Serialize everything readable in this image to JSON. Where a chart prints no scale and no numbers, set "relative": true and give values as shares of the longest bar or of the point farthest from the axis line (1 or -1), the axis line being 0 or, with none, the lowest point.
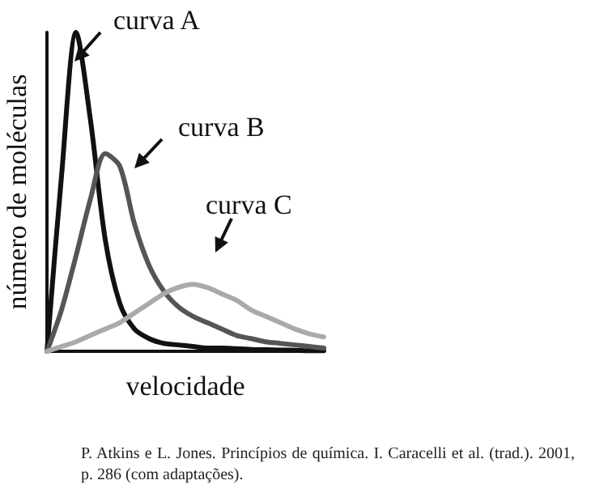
{
  "chart_data": {
    "type": "line",
    "relative": true,
    "xlabel": "velocidade",
    "ylabel": "número de moléculas",
    "categories": [
      null,
      null,
      null,
      null,
      null,
      null,
      null,
      null,
      null,
      null,
      null,
      null,
      null,
      null,
      null,
      null,
      null,
      null,
      null,
      null
    ],
    "series": [
      {
        "name": "curva A",
        "color": "#111111",
        "values": [
          0,
          0.55,
          1,
          0.72,
          0.35,
          0.15,
          0.07,
          0.04,
          0.025,
          0.02,
          0.015,
          0.01,
          0.01,
          0.008,
          0.006,
          0.005,
          0.004,
          0.003,
          0.002,
          0.002
        ]
      },
      {
        "name": "curva B",
        "color": "#555555",
        "values": [
          0,
          0.13,
          0.3,
          0.48,
          0.62,
          0.58,
          0.4,
          0.27,
          0.19,
          0.14,
          0.11,
          0.09,
          0.07,
          0.05,
          0.04,
          0.03,
          0.025,
          0.02,
          0.015,
          0.01
        ]
      },
      {
        "name": "curva C",
        "color": "#aaaaaa",
        "values": [
          0,
          0.015,
          0.03,
          0.05,
          0.07,
          0.09,
          0.12,
          0.15,
          0.18,
          0.2,
          0.21,
          0.2,
          0.18,
          0.16,
          0.13,
          0.11,
          0.09,
          0.07,
          0.055,
          0.045
        ]
      }
    ],
    "annotations": [
      "P. Atkins e L. Jones. Princípios de química. I. Caracelli et al. (trad.). 2001, p. 286 (com adaptações)."
    ]
  }
}
